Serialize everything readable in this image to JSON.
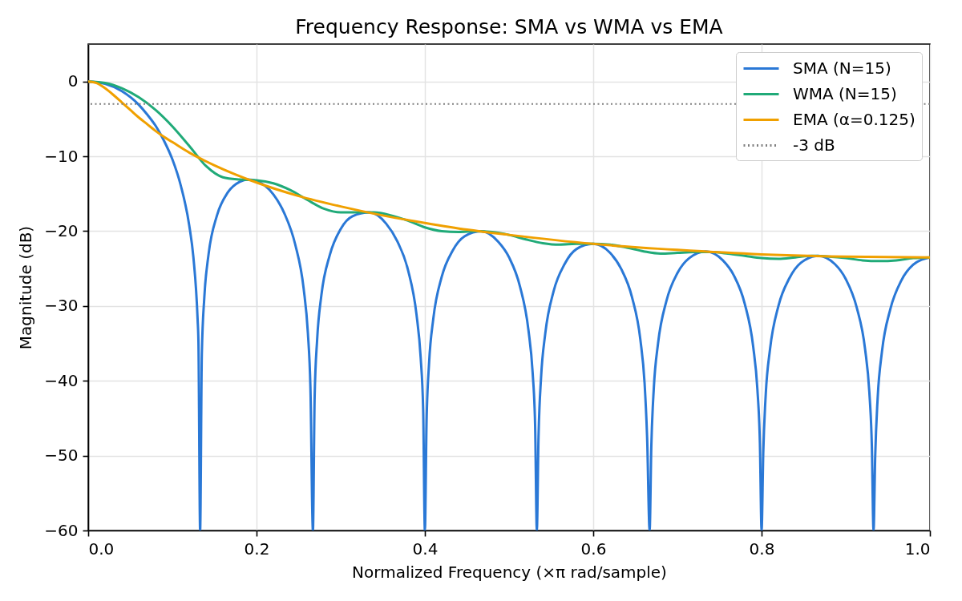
{
  "chart_data": {
    "type": "line",
    "title": "Frequency Response: SMA vs WMA vs EMA",
    "xlabel": "Normalized Frequency (×π rad/sample)",
    "ylabel": "Magnitude (dB)",
    "xlim": [
      0,
      1
    ],
    "ylim": [
      -60,
      5
    ],
    "xticks": [
      {
        "value": 0,
        "label": "0.0"
      },
      0.2,
      0.4,
      0.6,
      0.8,
      {
        "value": 1,
        "label": "1.0"
      }
    ],
    "yticks": [
      {
        "value": -60,
        "label": "−60"
      },
      {
        "value": -50,
        "label": "−50"
      },
      {
        "value": -40,
        "label": "−40"
      },
      {
        "value": -30,
        "label": "−30"
      },
      {
        "value": -20,
        "label": "−20"
      },
      {
        "value": -10,
        "label": "−10"
      },
      0
    ],
    "grid": true,
    "legend": "top right",
    "line_style": "solid",
    "series": [
      {
        "name": "SMA (N=15)",
        "color": "#2a78d6",
        "x": [
          0,
          0.02,
          0.04,
          0.06,
          0.07,
          0.08,
          0.09,
          0.1,
          0.11,
          0.12,
          0.125,
          0.13,
          0.131,
          0.133,
          0.135,
          0.138,
          0.143,
          0.153,
          0.166,
          0.18,
          0.19,
          0.2,
          0.22,
          0.233,
          0.246,
          0.256,
          0.261,
          0.264,
          0.267,
          0.269,
          0.272,
          0.277,
          0.287,
          0.3,
          0.314,
          0.334,
          0.354,
          0.367,
          0.38,
          0.39,
          0.395,
          0.398,
          0.4,
          0.402,
          0.405,
          0.41,
          0.42,
          0.433,
          0.447,
          0.467,
          0.487,
          0.5,
          0.513,
          0.523,
          0.528,
          0.531,
          0.533,
          0.535,
          0.538,
          0.543,
          0.553,
          0.566,
          0.58,
          0.6,
          0.62,
          0.633,
          0.646,
          0.656,
          0.661,
          0.664,
          0.667,
          0.669,
          0.672,
          0.677,
          0.687,
          0.7,
          0.714,
          0.734,
          0.754,
          0.767,
          0.78,
          0.79,
          0.795,
          0.798,
          0.8,
          0.802,
          0.805,
          0.81,
          0.82,
          0.833,
          0.847,
          0.867,
          0.887,
          0.9,
          0.913,
          0.923,
          0.928,
          0.931,
          0.933,
          0.935,
          0.938,
          0.943,
          0.953,
          0.966,
          0.98,
          1
        ],
        "values": [
          0,
          -0.3,
          -1.3,
          -3.1,
          -4.4,
          -5.9,
          -7.9,
          -10.4,
          -13.9,
          -19.2,
          -23.5,
          -31.8,
          -34.9,
          -60,
          -36.5,
          -28.8,
          -23.1,
          -17.9,
          -14.8,
          -13.4,
          -13.1,
          -13.3,
          -15.1,
          -17.6,
          -21.8,
          -27.7,
          -33.6,
          -40.8,
          -60,
          -42.3,
          -34.5,
          -28.6,
          -23.2,
          -19.7,
          -18.0,
          -17.5,
          -19.0,
          -21.3,
          -25.2,
          -31.1,
          -36.9,
          -44.1,
          -60,
          -45.5,
          -37.6,
          -31.7,
          -26.1,
          -22.6,
          -20.7,
          -20.0,
          -21.4,
          -23.5,
          -27.4,
          -33.2,
          -38.9,
          -46.1,
          -60,
          -47.5,
          -39.6,
          -33.7,
          -28.0,
          -24.4,
          -22.4,
          -21.7,
          -22.9,
          -25.0,
          -28.8,
          -34.5,
          -40.3,
          -47.5,
          -60,
          -48.8,
          -40.9,
          -35.0,
          -29.3,
          -25.6,
          -23.6,
          -22.7,
          -23.9,
          -25.9,
          -29.7,
          -35.4,
          -41.1,
          -48.3,
          -60,
          -49.6,
          -41.7,
          -35.8,
          -30.0,
          -26.3,
          -24.2,
          -23.3,
          -24.4,
          -26.4,
          -30.2,
          -35.8,
          -41.5,
          -48.7,
          -60,
          -50.0,
          -42.1,
          -36.1,
          -30.4,
          -26.6,
          -24.5,
          -23.5
        ]
      },
      {
        "name": "WMA (N=15)",
        "color": "#20aa78",
        "x": [
          0,
          0.02,
          0.04,
          0.06,
          0.08,
          0.1,
          0.12,
          0.14,
          0.16,
          0.18,
          0.2,
          0.22,
          0.24,
          0.26,
          0.28,
          0.3,
          0.32,
          0.34,
          0.36,
          0.38,
          0.4,
          0.42,
          0.44,
          0.46,
          0.48,
          0.5,
          0.52,
          0.54,
          0.56,
          0.58,
          0.6,
          0.62,
          0.64,
          0.66,
          0.68,
          0.7,
          0.72,
          0.74,
          0.76,
          0.78,
          0.8,
          0.82,
          0.84,
          0.86,
          0.88,
          0.9,
          0.92,
          0.94,
          0.96,
          0.98,
          1
        ],
        "values": [
          0,
          -0.2,
          -0.9,
          -2.1,
          -3.8,
          -6.0,
          -8.6,
          -11.3,
          -12.8,
          -13.1,
          -13.2,
          -13.6,
          -14.5,
          -15.8,
          -17.0,
          -17.5,
          -17.5,
          -17.5,
          -17.9,
          -18.6,
          -19.5,
          -20.0,
          -20.1,
          -20.0,
          -20.1,
          -20.5,
          -21.1,
          -21.6,
          -21.8,
          -21.7,
          -21.7,
          -21.8,
          -22.2,
          -22.7,
          -23.0,
          -22.9,
          -22.8,
          -22.8,
          -23.0,
          -23.3,
          -23.6,
          -23.7,
          -23.5,
          -23.3,
          -23.4,
          -23.6,
          -23.9,
          -24.0,
          -23.9,
          -23.6,
          -23.5
        ]
      },
      {
        "name": "EMA (α=0.125)",
        "color": "#f0a000",
        "x": [
          0,
          0.01,
          0.02,
          0.03,
          0.04,
          0.05,
          0.06,
          0.07,
          0.08,
          0.09,
          0.1,
          0.12,
          0.15,
          0.2,
          0.25,
          0.3,
          0.35,
          0.4,
          0.45,
          0.5,
          0.6,
          0.7,
          0.8,
          0.9,
          1
        ],
        "values": [
          0,
          -0.2,
          -0.9,
          -1.8,
          -2.8,
          -3.8,
          -4.8,
          -5.7,
          -6.6,
          -7.4,
          -8.1,
          -9.5,
          -11.2,
          -13.5,
          -15.3,
          -16.7,
          -17.9,
          -18.9,
          -19.8,
          -20.5,
          -21.7,
          -22.5,
          -23.1,
          -23.4,
          -23.5
        ]
      }
    ],
    "ref_lines": [
      {
        "axis": "y",
        "value": -3,
        "label": "-3 dB",
        "color": "#808080",
        "line_style": "dotted"
      }
    ]
  }
}
